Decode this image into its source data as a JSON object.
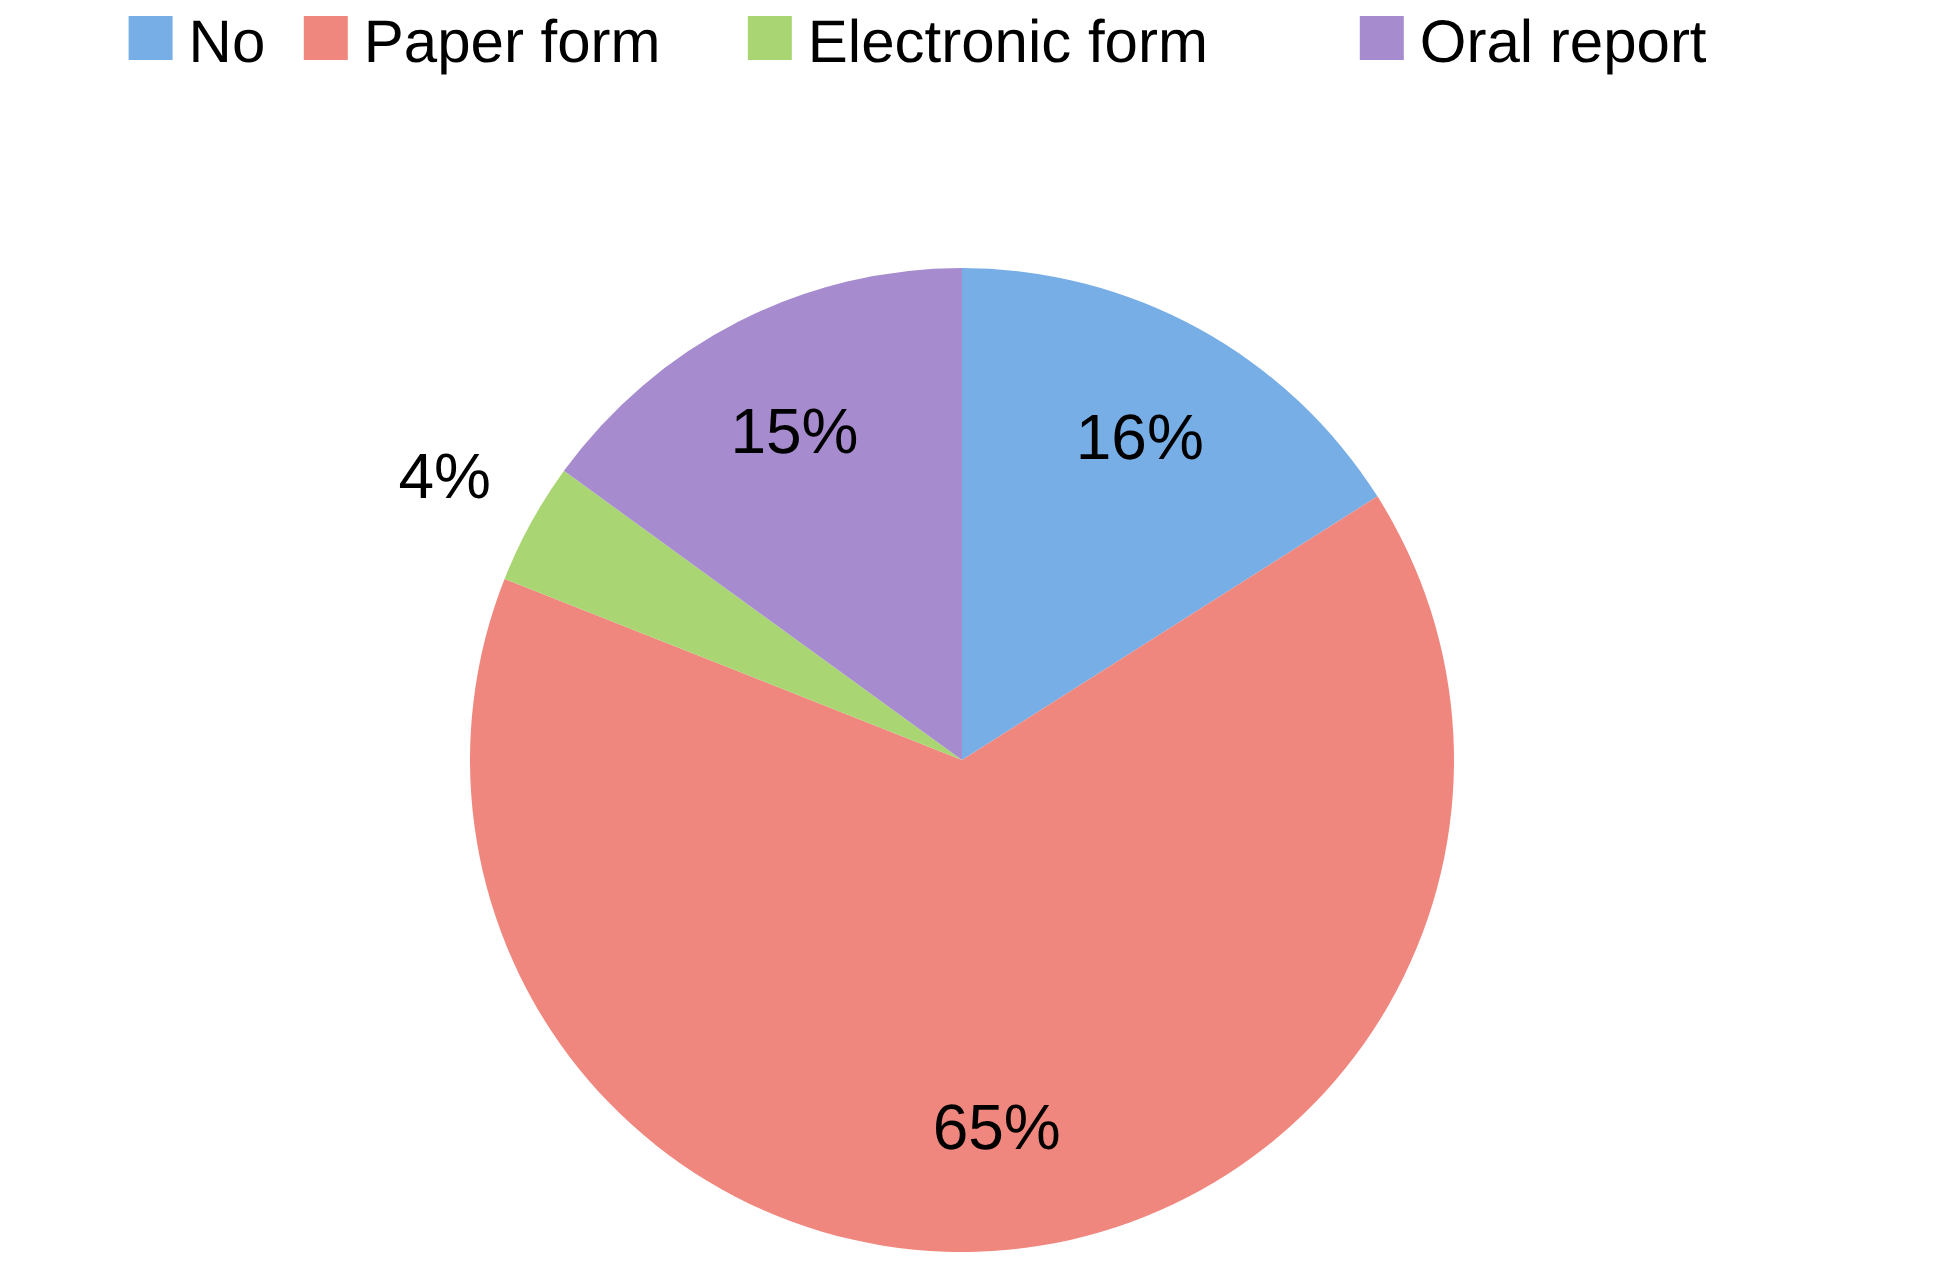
{
  "chart_data": {
    "type": "pie",
    "categories": [
      "No",
      "Paper form",
      "Electronic form",
      "Oral report"
    ],
    "values": [
      16,
      65,
      4,
      15
    ],
    "colors": [
      "#78aee6",
      "#f0877e",
      "#a9d572",
      "#a78bcf"
    ],
    "value_labels": [
      "16%",
      "65%",
      "4%",
      "15%"
    ],
    "legend": "top"
  }
}
